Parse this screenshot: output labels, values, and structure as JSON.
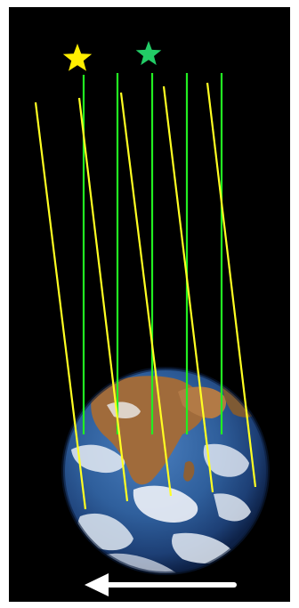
{
  "diagram": {
    "colors": {
      "background": "#000000",
      "frame": "#ffffff",
      "yellow_star": "#ffee00",
      "green_star": "#22cc66",
      "yellow_lines": "#ffff22",
      "green_lines": "#22ee22",
      "arrow": "#ffffff",
      "ocean": "#2f5f9c",
      "ocean_dark": "#14305f",
      "land": "#9b6a3e",
      "cloud": "#e8eef5"
    },
    "icons": {
      "yellow_star": "star-icon",
      "green_star": "star-icon",
      "arrow": "arrow-left-icon",
      "earth": "earth-globe"
    }
  }
}
